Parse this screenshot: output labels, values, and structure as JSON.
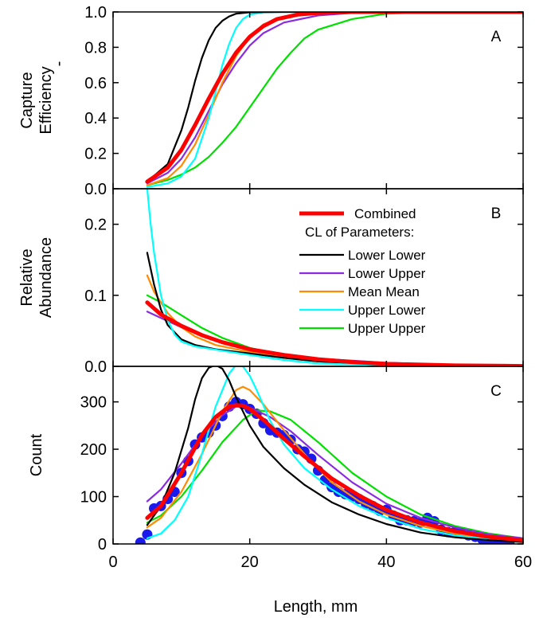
{
  "chart_data": {
    "type": "line",
    "x_label": "Length, mm",
    "x_range": [
      0,
      60
    ],
    "x_ticks": [
      0,
      20,
      40,
      60
    ],
    "grid": false,
    "legend_position": "top-right of panel B",
    "colors": {
      "combined": "#ff0000",
      "lower_lower": "#000000",
      "lower_upper": "#8a2be2",
      "mean_mean": "#ff8c00",
      "upper_lower": "#00ffff",
      "upper_upper": "#00e000",
      "observed_points": "#1a1aee"
    },
    "legend": {
      "combined": "Combined",
      "header": "CL of Parameters:",
      "items": [
        "Lower Lower",
        "Lower Upper",
        "Mean  Mean",
        "Upper Lower",
        "Upper Upper"
      ]
    },
    "panels": [
      {
        "letter": "A",
        "y_label_lines": [
          "Capture",
          "Efficiency"
        ],
        "y_label_extra": "-",
        "y_range": [
          0,
          1.0
        ],
        "y_ticks": [
          "0.0",
          "0.2",
          "0.4",
          "0.6",
          "0.8",
          "1.0"
        ],
        "series": [
          {
            "name": "Lower Upper",
            "x": [
              5,
              8,
              10,
              12,
              14,
              16,
              18,
              20,
              22,
              25,
              30,
              35,
              40,
              60
            ],
            "y": [
              0.03,
              0.09,
              0.17,
              0.29,
              0.44,
              0.59,
              0.71,
              0.81,
              0.88,
              0.94,
              0.98,
              0.995,
              0.999,
              1.0
            ]
          },
          {
            "name": "Upper Upper",
            "x": [
              5,
              8,
              10,
              12,
              14,
              16,
              18,
              20,
              22,
              24,
              26,
              28,
              30,
              35,
              40,
              45,
              60
            ],
            "y": [
              0.02,
              0.05,
              0.08,
              0.12,
              0.18,
              0.26,
              0.35,
              0.46,
              0.57,
              0.68,
              0.77,
              0.85,
              0.9,
              0.96,
              0.99,
              0.997,
              1.0
            ]
          },
          {
            "name": "Mean  Mean",
            "x": [
              5,
              8,
              10,
              12,
              14,
              16,
              18,
              20,
              22,
              25,
              30,
              35,
              60
            ],
            "y": [
              0.02,
              0.06,
              0.13,
              0.25,
              0.42,
              0.6,
              0.75,
              0.86,
              0.93,
              0.975,
              0.995,
              0.999,
              1.0
            ]
          },
          {
            "name": "Upper Lower",
            "x": [
              5,
              8,
              10,
              12,
              14,
              15,
              16,
              17,
              18,
              19,
              20,
              22,
              24,
              27,
              60
            ],
            "y": [
              0.01,
              0.03,
              0.07,
              0.17,
              0.4,
              0.55,
              0.7,
              0.82,
              0.91,
              0.96,
              0.985,
              0.998,
              1.0,
              1.0,
              1.0
            ]
          },
          {
            "name": "Lower Lower",
            "x": [
              5,
              8,
              10,
              11,
              12,
              13,
              14,
              15,
              16,
              17,
              18,
              20,
              25,
              60
            ],
            "y": [
              0.04,
              0.14,
              0.33,
              0.46,
              0.61,
              0.74,
              0.84,
              0.91,
              0.95,
              0.975,
              0.99,
              0.998,
              1.0,
              1.0
            ]
          },
          {
            "name": "Combined",
            "x": [
              5,
              8,
              10,
              12,
              14,
              16,
              18,
              20,
              22,
              24,
              27,
              30,
              35,
              60
            ],
            "y": [
              0.04,
              0.12,
              0.22,
              0.36,
              0.51,
              0.65,
              0.77,
              0.86,
              0.92,
              0.96,
              0.985,
              0.995,
              1.0,
              1.0
            ]
          }
        ]
      },
      {
        "letter": "B",
        "y_label_lines": [
          "Relative",
          "Abundance"
        ],
        "y_range": [
          0,
          0.25
        ],
        "y_ticks": [
          "0.0",
          "0.1",
          "0.2"
        ],
        "series": [
          {
            "name": "Upper Upper",
            "x": [
              5,
              7,
              10,
              13,
              16,
              20,
              25,
              30,
              40,
              50,
              60
            ],
            "y": [
              0.1,
              0.09,
              0.072,
              0.054,
              0.04,
              0.026,
              0.015,
              0.009,
              0.003,
              0.001,
              0.0005
            ]
          },
          {
            "name": "Lower Upper",
            "x": [
              5,
              7,
              10,
              13,
              16,
              20,
              25,
              30,
              40,
              50,
              60
            ],
            "y": [
              0.077,
              0.068,
              0.055,
              0.044,
              0.035,
              0.025,
              0.017,
              0.011,
              0.005,
              0.002,
              0.001
            ]
          },
          {
            "name": "Mean  Mean",
            "x": [
              5,
              6,
              8,
              10,
              12,
              15,
              20,
              25,
              30,
              40,
              60
            ],
            "y": [
              0.128,
              0.105,
              0.075,
              0.055,
              0.042,
              0.03,
              0.02,
              0.012,
              0.007,
              0.002,
              0.0003
            ]
          },
          {
            "name": "Lower Lower",
            "x": [
              5,
              6,
              7,
              8,
              10,
              12,
              15,
              20,
              25,
              30,
              40,
              60
            ],
            "y": [
              0.16,
              0.115,
              0.08,
              0.058,
              0.038,
              0.03,
              0.024,
              0.018,
              0.012,
              0.007,
              0.002,
              0.0002
            ]
          },
          {
            "name": "Upper Lower",
            "x": [
              5,
              5.5,
              6,
              7,
              8,
              9,
              10,
              12,
              14,
              16,
              20,
              25,
              30,
              40,
              60
            ],
            "y": [
              0.25,
              0.2,
              0.16,
              0.1,
              0.065,
              0.045,
              0.035,
              0.028,
              0.025,
              0.022,
              0.016,
              0.009,
              0.004,
              0.001,
              0.0001
            ]
          },
          {
            "name": "Combined",
            "x": [
              5,
              7,
              10,
              13,
              16,
              20,
              25,
              30,
              35,
              40,
              50,
              60
            ],
            "y": [
              0.09,
              0.073,
              0.057,
              0.044,
              0.034,
              0.024,
              0.016,
              0.01,
              0.006,
              0.0035,
              0.0012,
              0.0004
            ]
          }
        ]
      },
      {
        "letter": "C",
        "y_label_lines": [
          "Count"
        ],
        "y_range": [
          0,
          375
        ],
        "y_ticks": [
          "0",
          "100",
          "200",
          "300"
        ],
        "points": {
          "name": "Observed",
          "x": [
            4,
            5,
            6,
            7,
            8,
            9,
            10,
            11,
            12,
            13,
            14,
            15,
            16,
            17,
            18,
            19,
            20,
            21,
            22,
            23,
            24,
            25,
            26,
            27,
            28,
            29,
            30,
            31,
            32,
            33,
            34,
            35,
            36,
            37,
            38,
            39,
            40,
            41,
            42,
            43,
            44,
            45,
            46,
            47,
            48,
            49,
            50,
            51,
            52,
            53,
            54,
            55,
            56,
            57,
            58
          ],
          "y": [
            3,
            20,
            75,
            80,
            95,
            110,
            150,
            175,
            210,
            225,
            235,
            250,
            270,
            290,
            300,
            295,
            285,
            275,
            255,
            240,
            235,
            230,
            220,
            200,
            195,
            180,
            155,
            135,
            120,
            110,
            105,
            100,
            95,
            85,
            80,
            70,
            72,
            60,
            50,
            50,
            48,
            45,
            55,
            48,
            30,
            25,
            25,
            22,
            18,
            15,
            10,
            8,
            5,
            3,
            2
          ]
        },
        "series": [
          {
            "name": "Upper Upper",
            "x": [
              5,
              7,
              10,
              13,
              16,
              19,
              21,
              23,
              26,
              30,
              35,
              40,
              45,
              50,
              55,
              60
            ],
            "y": [
              45,
              60,
              100,
              155,
              215,
              262,
              282,
              280,
              262,
              215,
              150,
              100,
              62,
              38,
              22,
              12
            ]
          },
          {
            "name": "Lower Upper",
            "x": [
              5,
              7,
              10,
              13,
              16,
              18,
              20,
              23,
              26,
              30,
              35,
              40,
              45,
              50,
              55,
              60
            ],
            "y": [
              90,
              115,
              170,
              228,
              272,
              290,
              288,
              268,
              238,
              188,
              130,
              85,
              55,
              35,
              20,
              12
            ]
          },
          {
            "name": "Mean  Mean",
            "x": [
              5,
              7,
              10,
              13,
              16,
              18,
              19,
              20,
              22,
              25,
              28,
              32,
              36,
              40,
              45,
              50,
              55,
              60
            ],
            "y": [
              35,
              55,
              110,
              190,
              280,
              325,
              332,
              325,
              295,
              240,
              190,
              130,
              90,
              62,
              38,
              22,
              12,
              6
            ]
          },
          {
            "name": "Upper Lower",
            "x": [
              5,
              7,
              9,
              11,
              13,
              15,
              17,
              18,
              19,
              20,
              21,
              23,
              25,
              28,
              32,
              36,
              40,
              45,
              50,
              55,
              60
            ],
            "y": [
              12,
              22,
              50,
              100,
              190,
              290,
              360,
              378,
              375,
              355,
              325,
              260,
              210,
              160,
              115,
              80,
              55,
              32,
              18,
              10,
              5
            ]
          },
          {
            "name": "Lower Lower",
            "x": [
              5,
              7,
              9,
              11,
              12,
              13,
              14,
              15,
              16,
              17,
              18,
              20,
              22,
              25,
              28,
              32,
              36,
              40,
              45,
              50,
              55,
              60
            ],
            "y": [
              40,
              80,
              150,
              245,
              305,
              350,
              372,
              378,
              370,
              345,
              310,
              250,
              205,
              160,
              125,
              88,
              62,
              42,
              24,
              14,
              8,
              4
            ]
          },
          {
            "name": "Combined",
            "x": [
              5,
              7,
              10,
              13,
              15,
              17,
              18,
              19,
              20,
              22,
              25,
              28,
              32,
              36,
              40,
              45,
              50,
              55,
              60
            ],
            "y": [
              55,
              80,
              150,
              230,
              268,
              290,
              293,
              292,
              285,
              262,
              222,
              185,
              138,
              102,
              72,
              45,
              27,
              15,
              8
            ]
          }
        ]
      }
    ]
  }
}
